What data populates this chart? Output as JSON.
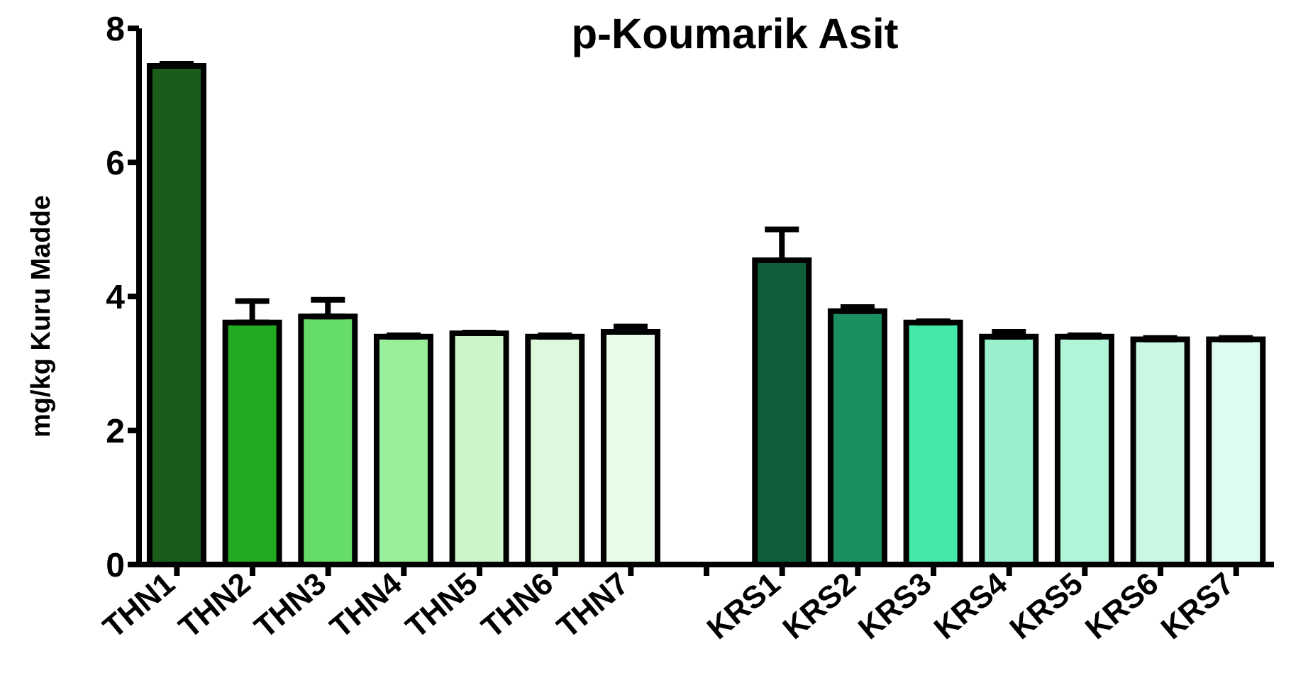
{
  "chart_data": {
    "type": "bar",
    "title": "p-Koumarik Asit",
    "ylabel": "mg/kg Kuru Madde",
    "categories": [
      "THN1",
      "THN2",
      "THN3",
      "THN4",
      "THN5",
      "THN6",
      "THN7",
      null,
      "KRS1",
      "KRS2",
      "KRS3",
      "KRS4",
      "KRS5",
      "KRS6",
      "KRS7"
    ],
    "values": [
      7.44,
      3.61,
      3.7,
      3.4,
      3.45,
      3.4,
      3.47,
      null,
      4.54,
      3.78,
      3.61,
      3.4,
      3.4,
      3.36,
      3.36
    ],
    "errors": [
      [
        7.44,
        7.47
      ],
      [
        3.61,
        3.93
      ],
      [
        3.7,
        3.95
      ],
      [
        3.4,
        3.42
      ],
      [
        3.45,
        3.46
      ],
      [
        3.4,
        3.42
      ],
      [
        3.47,
        3.55
      ],
      null,
      [
        4.54,
        5.0
      ],
      [
        3.78,
        3.84
      ],
      [
        3.61,
        3.63
      ],
      [
        3.4,
        3.47
      ],
      [
        3.4,
        3.42
      ],
      [
        3.36,
        3.38
      ],
      [
        3.36,
        3.38
      ]
    ],
    "colors": [
      "#1a5c1a",
      "#22aa22",
      "#66dd66",
      "#99ee99",
      "#ccf5cc",
      "#ddf8dd",
      "#e8fae8",
      "#ffffff",
      "#0e5e3a",
      "#1a9060",
      "#44e8a8",
      "#99f0cc",
      "#b0f5d8",
      "#c8f8e4",
      "#ddfbee"
    ],
    "ylim": [
      0,
      8
    ],
    "yticks": [
      0,
      2,
      4,
      6,
      8
    ],
    "grid": false
  }
}
